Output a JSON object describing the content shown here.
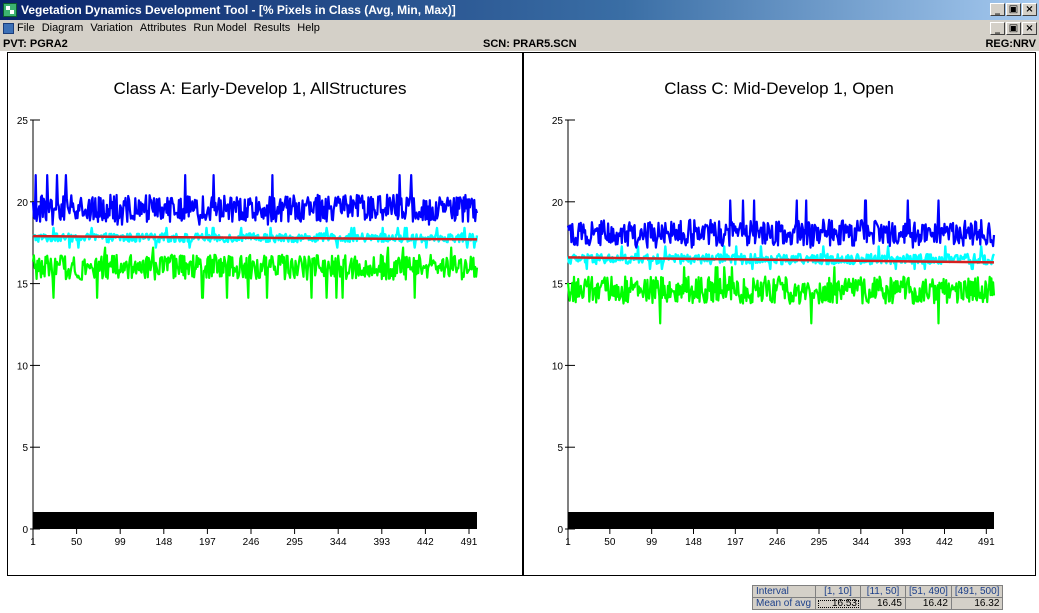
{
  "window": {
    "title": "Vegetation Dynamics Development Tool - [% Pixels in Class (Avg, Min, Max)]",
    "controls": [
      "_",
      "\b",
      "×"
    ]
  },
  "menu": {
    "items": [
      "File",
      "Diagram",
      "Variation",
      "Attributes",
      "Run Model",
      "Results",
      "Help"
    ]
  },
  "status": {
    "pvt": "PVT: PGRA2",
    "scn": "SCN: PRAR5.SCN",
    "reg": "REG:NRV"
  },
  "colors": {
    "max": "#0000ff",
    "avg": "#00ffff",
    "min": "#00ff00",
    "trend": "#d62020"
  },
  "chart_data": [
    {
      "type": "line",
      "title": "Class A: Early-Develop 1, AllStructures",
      "x_ticks": [
        1,
        50,
        99,
        148,
        197,
        246,
        295,
        344,
        393,
        442,
        491
      ],
      "y_ticks": [
        0,
        5,
        10,
        15,
        20,
        25
      ],
      "xlim": [
        1,
        500
      ],
      "ylim": [
        0,
        25
      ],
      "series": [
        {
          "name": "",
          "role": "max",
          "color": "#0000ff",
          "mean": 19.6,
          "low": 18.6,
          "high": 22.3
        },
        {
          "name": "",
          "role": "avg",
          "color": "#00ffff",
          "mean": 17.8,
          "low": 17.2,
          "high": 18.4
        },
        {
          "name": "",
          "role": "min",
          "color": "#00ff00",
          "mean": 16.0,
          "low": 13.8,
          "high": 17.2
        },
        {
          "name": "",
          "role": "trend",
          "color": "#d62020",
          "start": 17.9,
          "end": 17.7
        }
      ]
    },
    {
      "type": "line",
      "title": "Class C: Mid-Develop 1, Open",
      "x_ticks": [
        1,
        50,
        99,
        148,
        197,
        246,
        295,
        344,
        393,
        442,
        491
      ],
      "y_ticks": [
        0,
        5,
        10,
        15,
        20,
        25
      ],
      "xlim": [
        1,
        500
      ],
      "ylim": [
        0,
        25
      ],
      "series": [
        {
          "name": "",
          "role": "max",
          "color": "#0000ff",
          "mean": 18.1,
          "low": 17.2,
          "high": 20.8
        },
        {
          "name": "",
          "role": "avg",
          "color": "#00ffff",
          "mean": 16.5,
          "low": 15.9,
          "high": 17.3
        },
        {
          "name": "",
          "role": "min",
          "color": "#00ff00",
          "mean": 14.6,
          "low": 12.3,
          "high": 16.0
        },
        {
          "name": "",
          "role": "trend",
          "color": "#d62020",
          "start": 16.6,
          "end": 16.3
        }
      ]
    }
  ],
  "summary": {
    "row1_label": "Interval",
    "row2_label": "Mean of avg",
    "intervals": [
      "[1, 10]",
      "[11, 50]",
      "[51, 490]",
      "[491, 500]"
    ],
    "means": [
      "16.53",
      "16.45",
      "16.42",
      "16.32"
    ]
  }
}
